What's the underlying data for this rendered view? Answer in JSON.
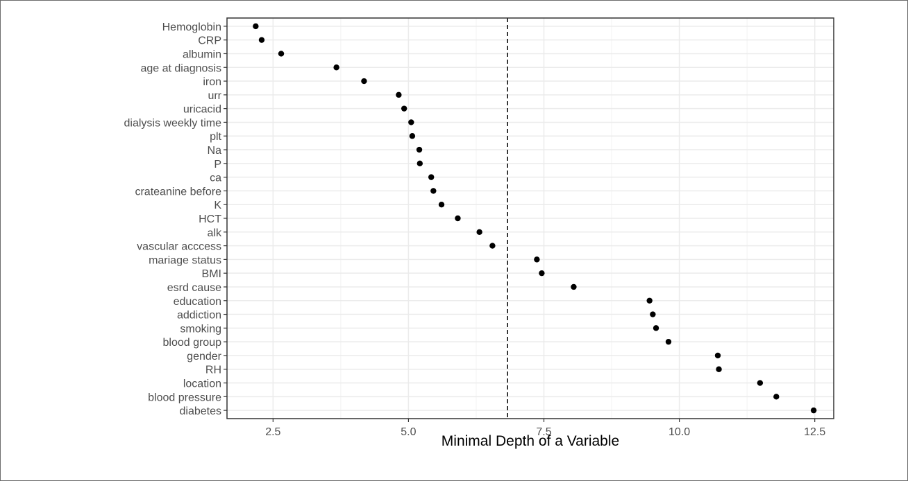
{
  "chart_data": {
    "type": "scatter",
    "title": "",
    "xlabel": "Minimal Depth of a Variable",
    "ylabel": "",
    "xlim": [
      1.65,
      12.85
    ],
    "xticks": [
      2.5,
      5.0,
      7.5,
      10.0,
      12.5
    ],
    "xtick_labels": [
      "2.5",
      "5.0",
      "7.5",
      "10.0",
      "12.5"
    ],
    "grid": true,
    "reference_line": {
      "x": 6.83,
      "style": "dashed"
    },
    "points": [
      {
        "label": "Hemoglobin",
        "x": 2.18
      },
      {
        "label": "CRP",
        "x": 2.29
      },
      {
        "label": "albumin",
        "x": 2.65
      },
      {
        "label": "age at diagnosis",
        "x": 3.67
      },
      {
        "label": "iron",
        "x": 4.18
      },
      {
        "label": "urr",
        "x": 4.82
      },
      {
        "label": "uricacid",
        "x": 4.92
      },
      {
        "label": "dialysis weekly time",
        "x": 5.05
      },
      {
        "label": "plt",
        "x": 5.07
      },
      {
        "label": "Na",
        "x": 5.2
      },
      {
        "label": "P",
        "x": 5.21
      },
      {
        "label": "ca",
        "x": 5.42
      },
      {
        "label": "crateanine before",
        "x": 5.46
      },
      {
        "label": "K",
        "x": 5.61
      },
      {
        "label": "HCT",
        "x": 5.91
      },
      {
        "label": "alk",
        "x": 6.31
      },
      {
        "label": "vascular acccess",
        "x": 6.55
      },
      {
        "label": "mariage status",
        "x": 7.37
      },
      {
        "label": "BMI",
        "x": 7.46
      },
      {
        "label": "esrd cause",
        "x": 8.05
      },
      {
        "label": "education",
        "x": 9.45
      },
      {
        "label": "addiction",
        "x": 9.51
      },
      {
        "label": "smoking",
        "x": 9.57
      },
      {
        "label": "blood group",
        "x": 9.8
      },
      {
        "label": "gender",
        "x": 10.71
      },
      {
        "label": "RH",
        "x": 10.73
      },
      {
        "label": "location",
        "x": 11.49
      },
      {
        "label": "blood pressure",
        "x": 11.79
      },
      {
        "label": "diabetes",
        "x": 12.48
      }
    ]
  },
  "colors": {
    "point": "#000000",
    "grid_major": "#ebebeb",
    "grid_minor": "#f2f2f2",
    "panel_border": "#333333",
    "tick_label": "#4d4d4d",
    "reference_line": "#000000"
  }
}
